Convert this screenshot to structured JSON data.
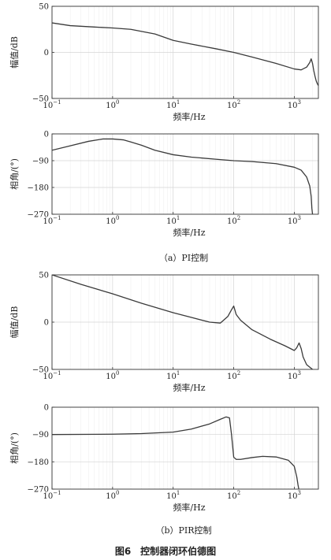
{
  "figure_caption": "图6　控制器闭环伯德图",
  "chart_data": [
    {
      "type": "line",
      "group": "pi",
      "ylabel": "幅值/dB",
      "xlabel": "频率/Hz",
      "xscale": "log",
      "xlim": [
        0.1,
        2500
      ],
      "ylim": [
        -50,
        50
      ],
      "xticks": [
        {
          "v": 0.1,
          "b": "10",
          "e": "−1"
        },
        {
          "v": 1,
          "b": "10",
          "e": "0"
        },
        {
          "v": 10,
          "b": "10",
          "e": "1"
        },
        {
          "v": 100,
          "b": "10",
          "e": "2"
        },
        {
          "v": 1000,
          "b": "10",
          "e": "3"
        }
      ],
      "yticks": [
        "50",
        "0",
        "−50"
      ],
      "ytick_values": [
        50,
        0,
        -50
      ],
      "grid": true,
      "x": [
        0.1,
        0.2,
        0.5,
        1,
        2,
        5,
        10,
        20,
        50,
        100,
        200,
        500,
        1000,
        1300,
        1600,
        1800,
        1900,
        2000,
        2100,
        2200,
        2300,
        2400,
        2500
      ],
      "y": [
        32,
        29,
        27.5,
        26.5,
        25,
        20,
        13,
        9,
        4,
        0,
        -5,
        -12,
        -18,
        -19,
        -16,
        -11,
        -7,
        -12,
        -20,
        -26,
        -31,
        -34,
        -36
      ]
    },
    {
      "type": "line",
      "group": "pi",
      "ylabel": "相角/(°)",
      "xlabel": "频率/Hz",
      "xscale": "log",
      "xlim": [
        0.1,
        2500
      ],
      "ylim": [
        -270,
        0
      ],
      "xticks": [
        {
          "v": 0.1,
          "b": "10",
          "e": "−1"
        },
        {
          "v": 1,
          "b": "10",
          "e": "0"
        },
        {
          "v": 10,
          "b": "10",
          "e": "1"
        },
        {
          "v": 100,
          "b": "10",
          "e": "2"
        },
        {
          "v": 1000,
          "b": "10",
          "e": "3"
        }
      ],
      "yticks": [
        "0",
        "−90",
        "−180",
        "−270"
      ],
      "ytick_values": [
        0,
        -90,
        -180,
        -270
      ],
      "grid": true,
      "x": [
        0.1,
        0.2,
        0.4,
        0.7,
        1,
        1.5,
        2,
        3,
        5,
        10,
        20,
        50,
        100,
        200,
        500,
        1000,
        1300,
        1600,
        1800,
        1900,
        1950,
        2000
      ],
      "y": [
        -55,
        -40,
        -25,
        -17,
        -17,
        -20,
        -27,
        -38,
        -55,
        -70,
        -78,
        -85,
        -90,
        -93,
        -100,
        -112,
        -122,
        -145,
        -175,
        -210,
        -250,
        -270
      ]
    },
    {
      "type": "line",
      "group": "pir",
      "ylabel": "幅值/dB",
      "xlabel": "频率/Hz",
      "xscale": "log",
      "xlim": [
        0.1,
        2500
      ],
      "ylim": [
        -50,
        50
      ],
      "xticks": [
        {
          "v": 0.1,
          "b": "10",
          "e": "−1"
        },
        {
          "v": 1,
          "b": "10",
          "e": "0"
        },
        {
          "v": 10,
          "b": "10",
          "e": "1"
        },
        {
          "v": 100,
          "b": "10",
          "e": "2"
        },
        {
          "v": 1000,
          "b": "10",
          "e": "3"
        }
      ],
      "yticks": [
        "50",
        "0",
        "−50"
      ],
      "ytick_values": [
        50,
        0,
        -50
      ],
      "grid": true,
      "x": [
        0.1,
        0.3,
        1,
        3,
        10,
        20,
        40,
        60,
        80,
        90,
        100,
        110,
        130,
        200,
        400,
        700,
        1000,
        1100,
        1200,
        1300,
        1400,
        1600,
        2000,
        2500
      ],
      "y": [
        50,
        40,
        30,
        20,
        10,
        5,
        0,
        -1,
        6,
        12,
        17,
        8,
        2,
        -8,
        -18,
        -25,
        -30,
        -27,
        -22,
        -28,
        -37,
        -45,
        -50,
        -55
      ]
    },
    {
      "type": "line",
      "group": "pir",
      "ylabel": "相角/(°)",
      "xlabel": "频率/Hz",
      "xscale": "log",
      "xlim": [
        0.1,
        2500
      ],
      "ylim": [
        -270,
        0
      ],
      "xticks": [
        {
          "v": 0.1,
          "b": "10",
          "e": "−1"
        },
        {
          "v": 1,
          "b": "10",
          "e": "0"
        },
        {
          "v": 10,
          "b": "10",
          "e": "1"
        },
        {
          "v": 100,
          "b": "10",
          "e": "2"
        },
        {
          "v": 1000,
          "b": "10",
          "e": "3"
        }
      ],
      "yticks": [
        "0",
        "−90",
        "−180",
        "−270"
      ],
      "ytick_values": [
        0,
        -90,
        -180,
        -270
      ],
      "grid": true,
      "x": [
        0.1,
        1,
        3,
        10,
        20,
        40,
        60,
        75,
        85,
        92,
        100,
        110,
        130,
        200,
        300,
        500,
        800,
        1000,
        1100,
        1150,
        1200
      ],
      "y": [
        -90,
        -89,
        -87,
        -82,
        -72,
        -55,
        -40,
        -32,
        -35,
        -90,
        -165,
        -172,
        -172,
        -166,
        -162,
        -164,
        -175,
        -195,
        -230,
        -255,
        -275
      ]
    }
  ],
  "captions": {
    "pi": "（a）PI控制",
    "pir": "（b）PIR控制"
  }
}
